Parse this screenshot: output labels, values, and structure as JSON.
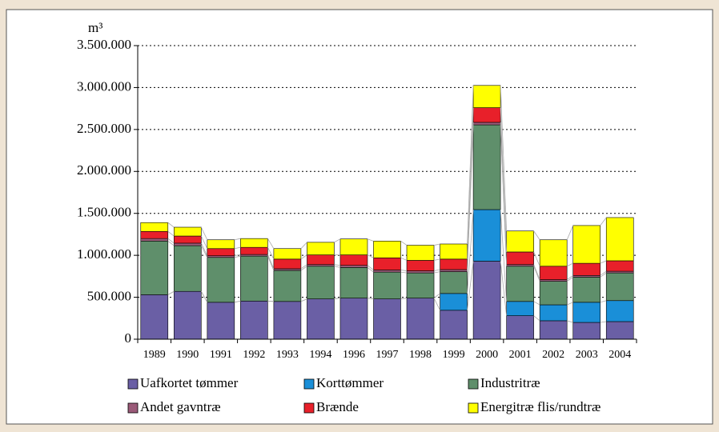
{
  "chart_data": {
    "type": "stacked_bar",
    "y_axis_label": "m³",
    "categories": [
      "1989",
      "1990",
      "1991",
      "1992",
      "1993",
      "1994",
      "1996",
      "1997",
      "1998",
      "1999",
      "2000",
      "2001",
      "2002",
      "2003",
      "2004"
    ],
    "series": [
      {
        "name": "Uafkortet tømmer",
        "color": "#6a5fa5",
        "values": [
          530000,
          570000,
          440000,
          455000,
          450000,
          480000,
          490000,
          480000,
          490000,
          345000,
          930000,
          280000,
          220000,
          200000,
          210000
        ]
      },
      {
        "name": "Korttømmer",
        "color": "#1a8fd8",
        "values": [
          0,
          0,
          0,
          0,
          0,
          0,
          0,
          0,
          0,
          200000,
          615000,
          170000,
          190000,
          240000,
          250000
        ]
      },
      {
        "name": "Industritræ",
        "color": "#5f8f6b",
        "values": [
          640000,
          545000,
          535000,
          535000,
          370000,
          390000,
          365000,
          320000,
          300000,
          260000,
          1010000,
          420000,
          280000,
          300000,
          330000
        ]
      },
      {
        "name": "Andet gavntræ",
        "color": "#9a5a78",
        "values": [
          30000,
          30000,
          20000,
          20000,
          20000,
          20000,
          25000,
          25000,
          25000,
          25000,
          30000,
          20000,
          20000,
          20000,
          20000
        ]
      },
      {
        "name": "Brænde",
        "color": "#e8202a",
        "values": [
          85000,
          85000,
          85000,
          85000,
          115000,
          115000,
          125000,
          145000,
          125000,
          125000,
          175000,
          150000,
          160000,
          145000,
          125000
        ]
      },
      {
        "name": "Energitræ flis/rundtræ",
        "color": "#ffff00",
        "values": [
          105000,
          105000,
          105000,
          105000,
          125000,
          150000,
          190000,
          200000,
          180000,
          180000,
          265000,
          250000,
          315000,
          450000,
          515000
        ]
      }
    ],
    "ylim": [
      0,
      3500000
    ],
    "yticks": [
      0,
      {
        "value": 500000,
        "label": "500.000"
      },
      {
        "value": 1000000,
        "label": "1.000.000"
      },
      {
        "value": 1500000,
        "label": "1.500.000"
      },
      {
        "value": 2000000,
        "label": "2.000.000"
      },
      {
        "value": 2500000,
        "label": "2.500.000"
      },
      {
        "value": 3000000,
        "label": "3.000.000"
      },
      {
        "value": 3500000,
        "label": "3.500.000"
      }
    ],
    "grid": true
  }
}
